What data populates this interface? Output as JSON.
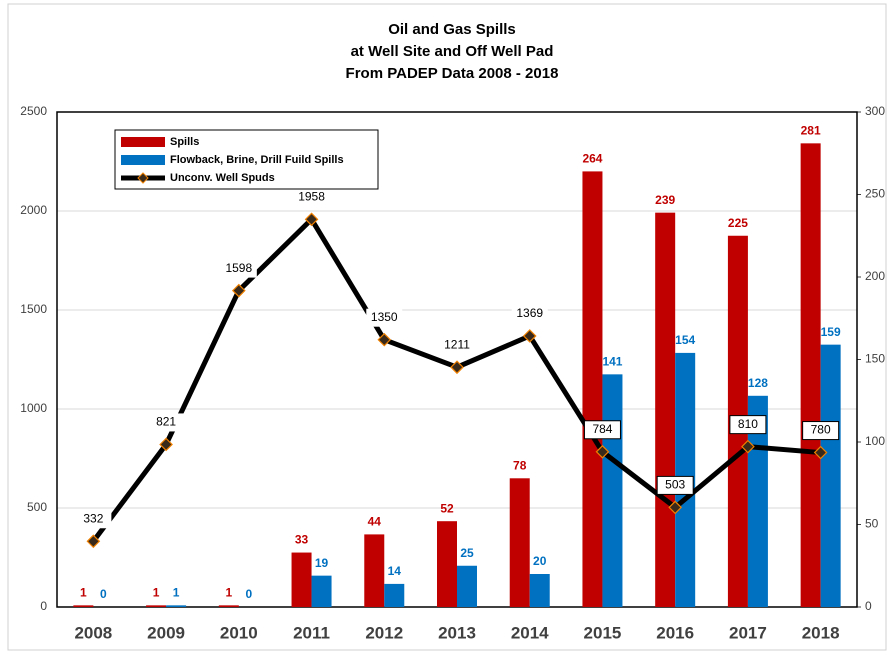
{
  "chart_data": {
    "type": "bar",
    "title": [
      "Oil and Gas Spills",
      "at Well Site and Off Well Pad",
      "From PADEP Data 2008 - 2018"
    ],
    "categories": [
      "2008",
      "2009",
      "2010",
      "2011",
      "2012",
      "2013",
      "2014",
      "2015",
      "2016",
      "2017",
      "2018"
    ],
    "series": [
      {
        "name": "Spills",
        "color": "#c00000",
        "axis": "y2",
        "type": "bar",
        "values": [
          1,
          1,
          1,
          33,
          44,
          52,
          78,
          264,
          239,
          225,
          281
        ]
      },
      {
        "name": "Flowback, Brine, Drill Fuild Spills",
        "color": "#0070c0",
        "axis": "y2",
        "type": "bar",
        "values": [
          0,
          1,
          0,
          19,
          14,
          25,
          20,
          141,
          154,
          128,
          159
        ]
      },
      {
        "name": "Unconv. Well Spuds",
        "color": "#000000",
        "axis": "y",
        "type": "line",
        "values": [
          332,
          821,
          1598,
          1958,
          1350,
          1211,
          1369,
          784,
          503,
          810,
          780
        ]
      }
    ],
    "ylim": [
      0,
      2500
    ],
    "yticks": [
      0,
      500,
      1000,
      1500,
      2000,
      2500
    ],
    "y2lim": [
      0,
      300
    ],
    "y2ticks": [
      0,
      50,
      100,
      150,
      200,
      250,
      300
    ],
    "grid": true,
    "legend": "upper left"
  }
}
